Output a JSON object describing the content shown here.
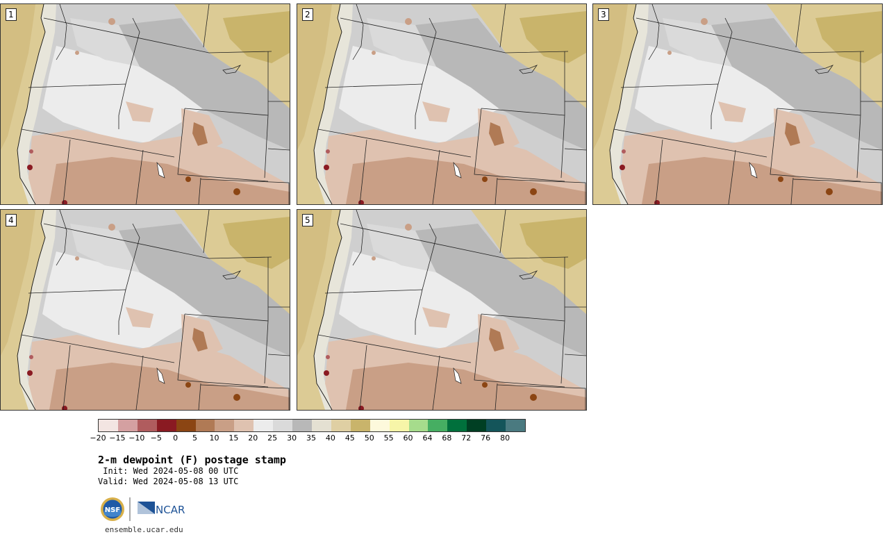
{
  "panels": [
    {
      "label": "1"
    },
    {
      "label": "2"
    },
    {
      "label": "3"
    },
    {
      "label": "4"
    },
    {
      "label": "5"
    }
  ],
  "colorbar": {
    "colors": [
      "#f3e5e2",
      "#d4a0a1",
      "#b05c5e",
      "#8a1a22",
      "#8b4513",
      "#b07a55",
      "#c99f86",
      "#dfc2b0",
      "#ececec",
      "#dadada",
      "#b8b8b8",
      "#e4e0d2",
      "#dfcfa3",
      "#c9b46b",
      "#fdf9dc",
      "#f7f5a8",
      "#a6dc8c",
      "#46ae62",
      "#00703c",
      "#003f23",
      "#14555a",
      "#4a7a80"
    ],
    "tick_labels": [
      "−20",
      "−15",
      "−10",
      "−5",
      "0",
      "5",
      "10",
      "15",
      "20",
      "25",
      "30",
      "35",
      "40",
      "45",
      "50",
      "55",
      "60",
      "64",
      "68",
      "72",
      "76",
      "80"
    ]
  },
  "title": "2-m dewpoint (F) postage stamp",
  "init_line": " Init: Wed 2024-05-08 00 UTC",
  "valid_line": "Valid: Wed 2024-05-08 13 UTC",
  "logos": {
    "nsf_text": "NSF",
    "ncar_text": "NCAR",
    "nsf_icon": "nsf-globe-icon",
    "ncar_icon": "ncar-wedge-icon"
  },
  "url": "ensemble.ucar.edu"
}
